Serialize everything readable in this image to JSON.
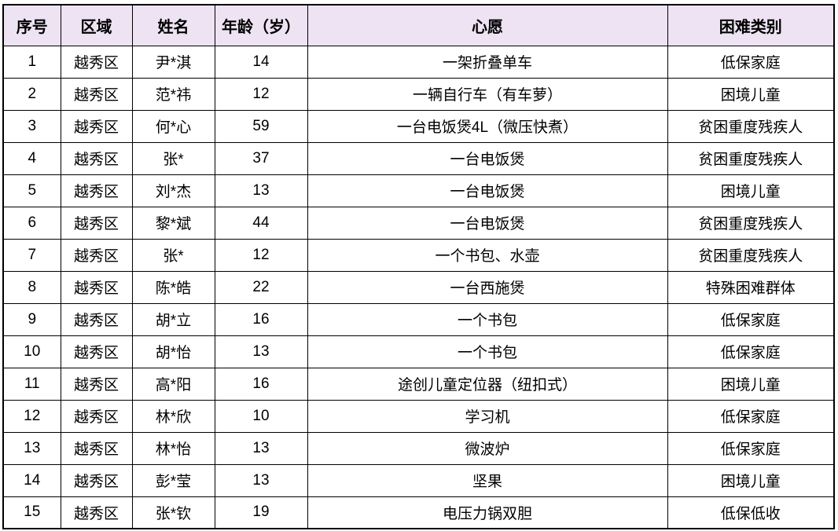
{
  "table": {
    "headers": [
      "序号",
      "区域",
      "姓名",
      "年龄（岁）",
      "心愿",
      "困难类别"
    ],
    "rows": [
      [
        "1",
        "越秀区",
        "尹*淇",
        "14",
        "一架折叠单车",
        "低保家庭"
      ],
      [
        "2",
        "越秀区",
        "范*祎",
        "12",
        "一辆自行车（有车萝）",
        "困境儿童"
      ],
      [
        "3",
        "越秀区",
        "何*心",
        "59",
        "一台电饭煲4L（微压快煮）",
        "贫困重度残疾人"
      ],
      [
        "4",
        "越秀区",
        "张*",
        "37",
        "一台电饭煲",
        "贫困重度残疾人"
      ],
      [
        "5",
        "越秀区",
        "刘*杰",
        "13",
        "一台电饭煲",
        "困境儿童"
      ],
      [
        "6",
        "越秀区",
        "黎*斌",
        "44",
        "一台电饭煲",
        "贫困重度残疾人"
      ],
      [
        "7",
        "越秀区",
        "张*",
        "12",
        "一个书包、水壶",
        "贫困重度残疾人"
      ],
      [
        "8",
        "越秀区",
        "陈*皓",
        "22",
        "一台西施煲",
        "特殊困难群体"
      ],
      [
        "9",
        "越秀区",
        "胡*立",
        "16",
        "一个书包",
        "低保家庭"
      ],
      [
        "10",
        "越秀区",
        "胡*怡",
        "13",
        "一个书包",
        "低保家庭"
      ],
      [
        "11",
        "越秀区",
        "高*阳",
        "16",
        "途创儿童定位器（纽扣式）",
        "困境儿童"
      ],
      [
        "12",
        "越秀区",
        "林*欣",
        "10",
        "学习机",
        "低保家庭"
      ],
      [
        "13",
        "越秀区",
        "林*怡",
        "13",
        "微波炉",
        "低保家庭"
      ],
      [
        "14",
        "越秀区",
        "彭*莹",
        "13",
        "坚果",
        "困境儿童"
      ],
      [
        "15",
        "越秀区",
        "张*钦",
        "19",
        "电压力锅双胆",
        "低保低收"
      ]
    ],
    "colors": {
      "header_bg": "#EDE3F2",
      "border": "#000000",
      "row_bg": "#FFFFFF",
      "text": "#000000"
    }
  }
}
